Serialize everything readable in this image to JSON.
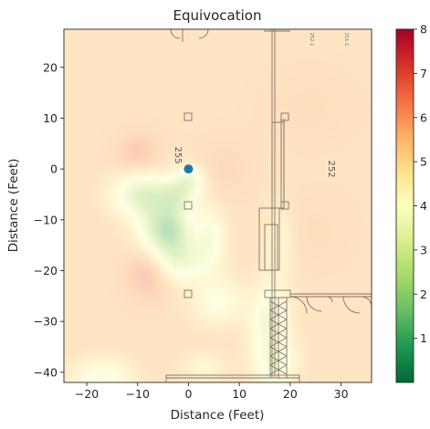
{
  "chart_data": {
    "type": "heatmap",
    "title": "Equivocation",
    "xlabel": "Distance (Feet)",
    "ylabel": "Distance (Feet)",
    "xlim": [
      -24.5,
      36
    ],
    "ylim": [
      -42,
      27.5
    ],
    "xticks": [
      -20,
      -10,
      0,
      10,
      20,
      30
    ],
    "yticks": [
      20,
      10,
      0,
      -10,
      -20,
      -30,
      -40
    ],
    "colorbar": {
      "colormap": "RdYlGn_r",
      "vmin": 0,
      "vmax": 8,
      "ticks": [
        1,
        2,
        3,
        4,
        5,
        6,
        7,
        8
      ]
    },
    "baseline_value": 5.3,
    "blobs": [
      {
        "x": -9,
        "y": -5,
        "delta": -2.4,
        "sx": 4,
        "sy": 3
      },
      {
        "x": -6,
        "y": -12,
        "delta": -2.2,
        "sx": 3.2,
        "sy": 4
      },
      {
        "x": -2,
        "y": -5,
        "delta": -1.8,
        "sx": 2.5,
        "sy": 2.5
      },
      {
        "x": -3,
        "y": -12,
        "delta": -2.0,
        "sx": 2.5,
        "sy": 3
      },
      {
        "x": 0.5,
        "y": -2,
        "delta": -1.5,
        "sx": 2,
        "sy": 2
      },
      {
        "x": -1.5,
        "y": -18,
        "delta": -1.8,
        "sx": 3,
        "sy": 3
      },
      {
        "x": 4,
        "y": -14,
        "delta": -1.6,
        "sx": 2.2,
        "sy": 4.5
      },
      {
        "x": 6,
        "y": -26,
        "delta": -1.3,
        "sx": 3.5,
        "sy": 3
      },
      {
        "x": 16,
        "y": -30,
        "delta": -2.0,
        "sx": 2.5,
        "sy": 5
      },
      {
        "x": 17,
        "y": -38,
        "delta": -1.4,
        "sx": 3,
        "sy": 3
      },
      {
        "x": 18,
        "y": -14,
        "delta": -0.8,
        "sx": 2,
        "sy": 5
      },
      {
        "x": -17,
        "y": -41,
        "delta": -1.5,
        "sx": 4,
        "sy": 2.5
      },
      {
        "x": 3,
        "y": -39,
        "delta": -0.8,
        "sx": 3,
        "sy": 2
      },
      {
        "x": -10,
        "y": 3,
        "delta": 0.8,
        "sx": 3,
        "sy": 3
      },
      {
        "x": -8,
        "y": -20,
        "delta": 1.0,
        "sx": 3,
        "sy": 4
      },
      {
        "x": 7,
        "y": 0,
        "delta": 0.4,
        "sx": 4,
        "sy": 4
      },
      {
        "x": 24,
        "y": 12,
        "delta": 0.3,
        "sx": 6,
        "sy": 5
      },
      {
        "x": 25,
        "y": -12,
        "delta": 0.3,
        "sx": 5,
        "sy": 5
      }
    ],
    "marker": {
      "x": 0,
      "y": 0,
      "color": "#1f77b4"
    },
    "floorplan_labels": [
      {
        "text": "255",
        "x": -2.6,
        "y": 2.7,
        "rotate": 90
      },
      {
        "text": "252",
        "x": 27.6,
        "y": 0,
        "rotate": 90
      },
      {
        "text": "252-1",
        "x": 24,
        "y": 25.5,
        "rotate": 90
      },
      {
        "text": "251-1",
        "x": 30.8,
        "y": 25.5,
        "rotate": 90
      }
    ]
  }
}
